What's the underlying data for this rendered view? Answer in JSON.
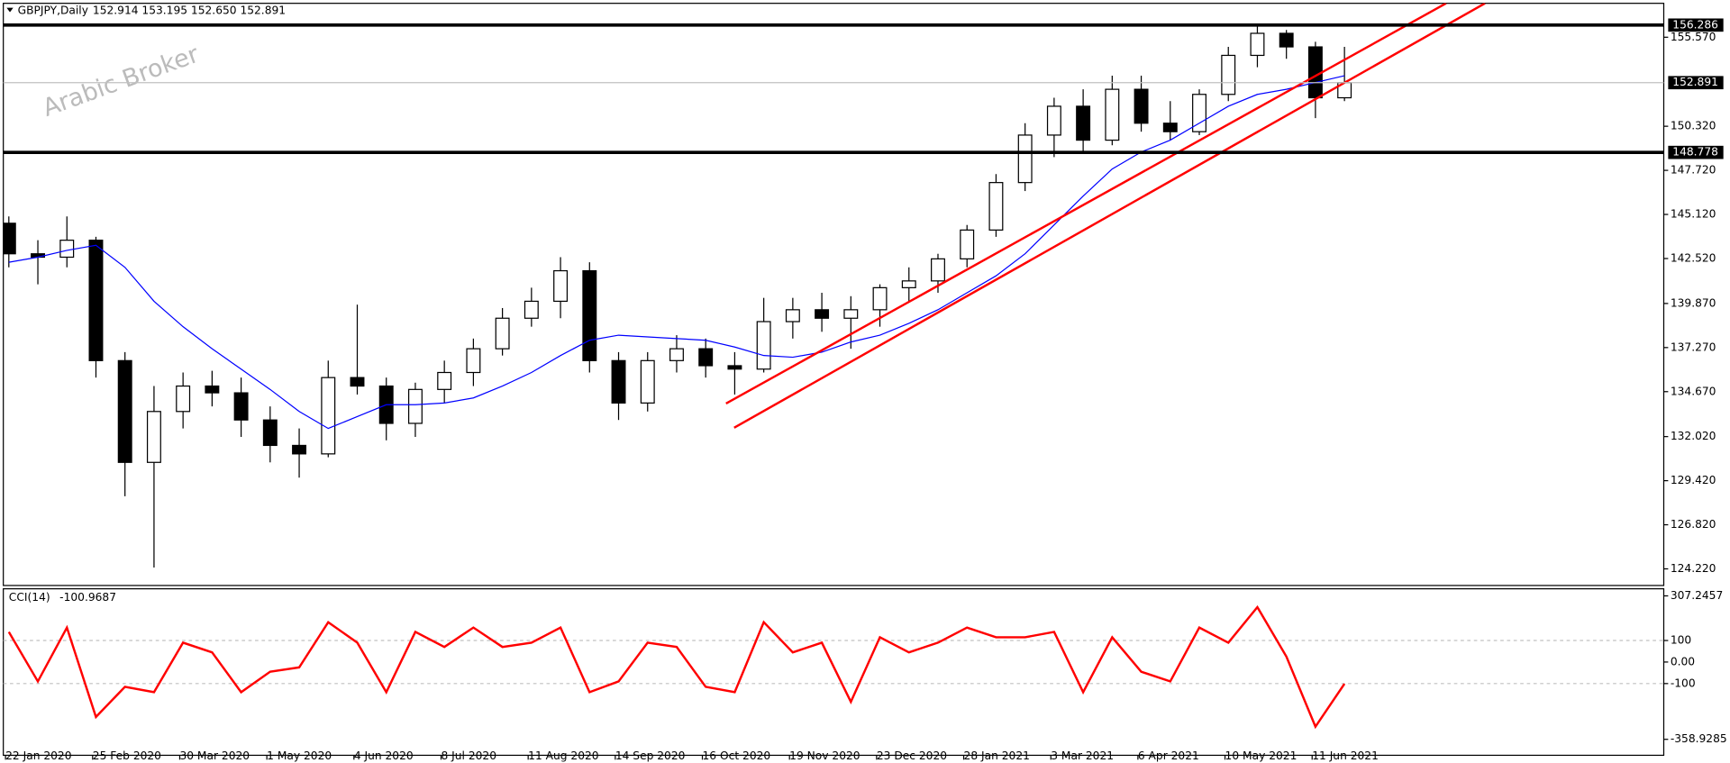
{
  "chart_data": [
    {
      "type": "candlestick",
      "title": "GBPJPY,Daily",
      "quote": "152.914 153.195 152.650 152.891",
      "watermark": "Arabic Broker",
      "categories": [
        "22 Jan 2020",
        null,
        null,
        "25 Feb 2020",
        null,
        null,
        "30 Mar 2020",
        null,
        null,
        "1 May 2020",
        null,
        null,
        "4 Jun 2020",
        null,
        null,
        "8 Jul 2020",
        null,
        null,
        "11 Aug 2020",
        null,
        null,
        "14 Sep 2020",
        null,
        null,
        "16 Oct 2020",
        null,
        null,
        "19 Nov 2020",
        null,
        null,
        "23 Dec 2020",
        null,
        null,
        "28 Jan 2021",
        null,
        null,
        "3 Mar 2021",
        null,
        null,
        "6 Apr 2021",
        null,
        null,
        "10 May 2021",
        null,
        null,
        "11 Jun 2021",
        null
      ],
      "open": [
        144.6,
        142.8,
        142.6,
        143.6,
        136.5,
        130.5,
        133.5,
        135.0,
        134.6,
        133.0,
        131.5,
        131.0,
        135.5,
        135.0,
        132.8,
        134.8,
        135.8,
        137.2,
        139.0,
        140.0,
        141.8,
        136.5,
        134.0,
        136.5,
        137.2,
        136.2,
        136.0,
        138.8,
        139.5,
        139.0,
        139.5,
        140.8,
        141.2,
        142.5,
        144.2,
        147.0,
        149.8,
        151.5,
        149.5,
        152.5,
        150.5,
        150.0,
        152.2,
        154.5,
        155.8,
        155.0,
        152.0
      ],
      "high": [
        145.0,
        143.6,
        145.0,
        143.8,
        137.0,
        135.0,
        135.8,
        135.9,
        135.5,
        133.8,
        132.5,
        136.5,
        139.8,
        135.5,
        135.2,
        136.5,
        137.8,
        139.6,
        140.8,
        142.6,
        142.3,
        137.0,
        137.0,
        138.0,
        137.8,
        137.0,
        140.2,
        140.2,
        140.5,
        140.3,
        141.0,
        142.0,
        142.8,
        144.5,
        147.5,
        150.5,
        152.0,
        152.5,
        153.3,
        153.3,
        151.8,
        152.5,
        155.0,
        156.3,
        156.0,
        155.3,
        155.0
      ],
      "low": [
        142.0,
        141.0,
        142.0,
        135.5,
        128.5,
        124.3,
        132.5,
        133.8,
        132.0,
        130.5,
        129.6,
        130.8,
        134.5,
        131.8,
        132.0,
        134.0,
        135.0,
        136.8,
        138.5,
        139.0,
        135.8,
        133.0,
        133.5,
        135.8,
        135.5,
        134.5,
        135.8,
        137.8,
        138.2,
        137.2,
        138.5,
        140.0,
        140.5,
        142.0,
        143.8,
        146.5,
        148.5,
        148.8,
        149.2,
        150.0,
        149.5,
        149.8,
        151.8,
        153.8,
        154.3,
        150.8,
        151.8
      ],
      "close": [
        142.8,
        142.6,
        143.6,
        136.5,
        130.5,
        133.5,
        135.0,
        134.6,
        133.0,
        131.5,
        131.0,
        135.5,
        135.0,
        132.8,
        134.8,
        135.8,
        137.2,
        139.0,
        140.0,
        141.8,
        136.5,
        134.0,
        136.5,
        137.2,
        136.2,
        136.0,
        138.8,
        139.5,
        139.0,
        139.5,
        140.8,
        141.2,
        142.5,
        144.2,
        147.0,
        149.8,
        151.5,
        149.5,
        152.5,
        150.5,
        150.0,
        152.2,
        154.5,
        155.8,
        155.0,
        152.0,
        152.891
      ],
      "color": "#000000",
      "ma": {
        "color": "#0000ff",
        "values": [
          142.3,
          142.6,
          143.0,
          143.3,
          142.0,
          140.0,
          138.5,
          137.2,
          136.0,
          134.8,
          133.5,
          132.5,
          133.2,
          133.9,
          133.9,
          134.0,
          134.3,
          135.0,
          135.8,
          136.8,
          137.7,
          138.0,
          137.9,
          137.8,
          137.7,
          137.3,
          136.8,
          136.7,
          137.0,
          137.6,
          138.0,
          138.7,
          139.5,
          140.5,
          141.5,
          142.8,
          144.5,
          146.2,
          147.8,
          148.8,
          149.5,
          150.5,
          151.5,
          152.2,
          152.5,
          152.9,
          153.3
        ]
      },
      "ylim": [
        123.24,
        157.57
      ],
      "yticks": [
        {
          "value": 155.57,
          "label": "155.570"
        },
        {
          "value": 150.32,
          "label": "150.320"
        },
        {
          "value": 147.72,
          "label": "147.720"
        },
        {
          "value": 145.12,
          "label": "145.120"
        },
        {
          "value": 142.52,
          "label": "142.520"
        },
        {
          "value": 139.87,
          "label": "139.870"
        },
        {
          "value": 137.27,
          "label": "137.270"
        },
        {
          "value": 134.67,
          "label": "134.670"
        },
        {
          "value": 132.02,
          "label": "132.020"
        },
        {
          "value": 129.42,
          "label": "129.420"
        },
        {
          "value": 126.82,
          "label": "126.820"
        },
        {
          "value": 124.22,
          "label": "124.220"
        }
      ],
      "hlines": [
        156.286,
        148.778
      ],
      "last_price": 152.891,
      "trendline_color": "#ff0000",
      "trendlines": [
        {
          "x": [
            24.7,
            49.5
          ],
          "y": [
            133.97,
            157.57
          ]
        },
        {
          "x": [
            24.98,
            50.84
          ],
          "y": [
            132.54,
            157.57
          ]
        }
      ]
    },
    {
      "type": "line",
      "title": "CCI(14)",
      "series": [
        {
          "color": "#ff0000",
          "values": [
            140,
            -90,
            160,
            -255,
            -115,
            -140,
            90,
            45,
            -140,
            -45,
            -25,
            185,
            90,
            -140,
            140,
            70,
            160,
            70,
            90,
            160,
            -140,
            -90,
            90,
            70,
            -115,
            -140,
            185,
            45,
            90,
            -185,
            115,
            45,
            90,
            160,
            115,
            115,
            140,
            -140,
            115,
            -45,
            -90,
            160,
            90,
            255,
            25,
            -300,
            -100.9687
          ]
        }
      ],
      "ylim": [
        -433,
        335
      ],
      "yticks": [
        307.2457,
        100,
        {
          "value": 0,
          "label": "0.00"
        },
        -100,
        -358.9285
      ],
      "levels": [
        100,
        -100
      ]
    }
  ]
}
